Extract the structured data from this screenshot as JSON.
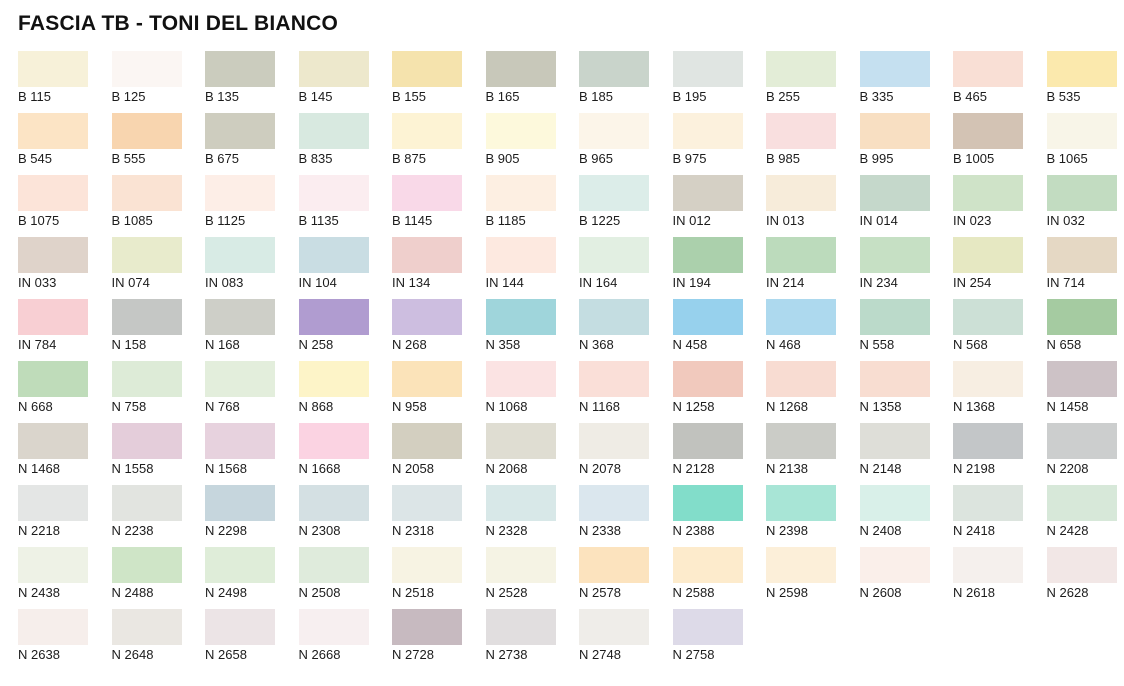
{
  "chart_data": {
    "type": "table",
    "title": "FASCIA TB - TONI DEL BIANCO",
    "layout": {
      "columns": 12,
      "rows": 10,
      "last_row_count": 8,
      "grid_on": false
    },
    "swatches": [
      {
        "code": "B 115",
        "color": "#F7F1D9"
      },
      {
        "code": "B 125",
        "color": "#FBF6F3"
      },
      {
        "code": "B 135",
        "color": "#CBCCBE"
      },
      {
        "code": "B 145",
        "color": "#EDE8CC"
      },
      {
        "code": "B 155",
        "color": "#F5E3AD"
      },
      {
        "code": "B 165",
        "color": "#C8C8BA"
      },
      {
        "code": "B 185",
        "color": "#C9D4CB"
      },
      {
        "code": "B 195",
        "color": "#E0E5E2"
      },
      {
        "code": "B 255",
        "color": "#E3EDD7"
      },
      {
        "code": "B 335",
        "color": "#C5E0F0"
      },
      {
        "code": "B 465",
        "color": "#F9DFD5"
      },
      {
        "code": "B 535",
        "color": "#FBE9AD"
      },
      {
        "code": "B 545",
        "color": "#FCE4C5"
      },
      {
        "code": "B 555",
        "color": "#F8D5AF"
      },
      {
        "code": "B 675",
        "color": "#CECDBF"
      },
      {
        "code": "B 835",
        "color": "#D8E9E0"
      },
      {
        "code": "B 875",
        "color": "#FDF3D4"
      },
      {
        "code": "B 905",
        "color": "#FDF9DC"
      },
      {
        "code": "B 965",
        "color": "#FCF5E9"
      },
      {
        "code": "B 975",
        "color": "#FCF1DD"
      },
      {
        "code": "B 985",
        "color": "#F9DFDF"
      },
      {
        "code": "B 995",
        "color": "#F8DFC2"
      },
      {
        "code": "B 1005",
        "color": "#D3C3B4"
      },
      {
        "code": "B 1065",
        "color": "#F8F5E8"
      },
      {
        "code": "B 1075",
        "color": "#FCE4D9"
      },
      {
        "code": "B 1085",
        "color": "#FAE3D3"
      },
      {
        "code": "B 1125",
        "color": "#FDEEE7"
      },
      {
        "code": "B 1135",
        "color": "#FBEDF0"
      },
      {
        "code": "B 1145",
        "color": "#F9D9E8"
      },
      {
        "code": "B 1185",
        "color": "#FDEFE2"
      },
      {
        "code": "B 1225",
        "color": "#DCEDE9"
      },
      {
        "code": "IN 012",
        "color": "#D5D0C5"
      },
      {
        "code": "IN 013",
        "color": "#F7ECDA"
      },
      {
        "code": "IN 014",
        "color": "#C5D8CB"
      },
      {
        "code": "IN 023",
        "color": "#CFE3C8"
      },
      {
        "code": "IN 032",
        "color": "#C2DCC1"
      },
      {
        "code": "IN 033",
        "color": "#DFD3CA"
      },
      {
        "code": "IN 074",
        "color": "#E8EBCC"
      },
      {
        "code": "IN 083",
        "color": "#D8EBE5"
      },
      {
        "code": "IN 104",
        "color": "#C9DDE3"
      },
      {
        "code": "IN 134",
        "color": "#EFCFCC"
      },
      {
        "code": "IN 144",
        "color": "#FDE9E0"
      },
      {
        "code": "IN 164",
        "color": "#E2EFE2"
      },
      {
        "code": "IN 194",
        "color": "#ABD0AC"
      },
      {
        "code": "IN 214",
        "color": "#BCDBBC"
      },
      {
        "code": "IN 234",
        "color": "#C6E0C4"
      },
      {
        "code": "IN 254",
        "color": "#E6E8C2"
      },
      {
        "code": "IN 714",
        "color": "#E5D8C4"
      },
      {
        "code": "IN 784",
        "color": "#F8CFD3"
      },
      {
        "code": "N 158",
        "color": "#C5C7C5"
      },
      {
        "code": "N 168",
        "color": "#CECFC8"
      },
      {
        "code": "N 258",
        "color": "#B09CD0"
      },
      {
        "code": "N 268",
        "color": "#CDBEE0"
      },
      {
        "code": "N 358",
        "color": "#9FD5DB"
      },
      {
        "code": "N 368",
        "color": "#C4DDE1"
      },
      {
        "code": "N 458",
        "color": "#97D1ED"
      },
      {
        "code": "N 468",
        "color": "#ADD9EE"
      },
      {
        "code": "N 558",
        "color": "#BBDACA"
      },
      {
        "code": "N 568",
        "color": "#CCE0D6"
      },
      {
        "code": "N 658",
        "color": "#A5CBA1"
      },
      {
        "code": "N 668",
        "color": "#BFDCBA"
      },
      {
        "code": "N 758",
        "color": "#DDEBD7"
      },
      {
        "code": "N 768",
        "color": "#E3EEDC"
      },
      {
        "code": "N 868",
        "color": "#FDF4C8"
      },
      {
        "code": "N 958",
        "color": "#FBE3B9"
      },
      {
        "code": "N 1068",
        "color": "#FBE3E3"
      },
      {
        "code": "N 1168",
        "color": "#FADFD8"
      },
      {
        "code": "N 1258",
        "color": "#F1C9BD"
      },
      {
        "code": "N 1268",
        "color": "#F8DCD2"
      },
      {
        "code": "N 1358",
        "color": "#F8DDD1"
      },
      {
        "code": "N 1368",
        "color": "#F7EEE2"
      },
      {
        "code": "N 1458",
        "color": "#CDC2C6"
      },
      {
        "code": "N 1468",
        "color": "#DAD5CC"
      },
      {
        "code": "N 1558",
        "color": "#E4CDDA"
      },
      {
        "code": "N 1568",
        "color": "#E7D2DE"
      },
      {
        "code": "N 1668",
        "color": "#FBD3E2"
      },
      {
        "code": "N 2058",
        "color": "#D3CFC0"
      },
      {
        "code": "N 2068",
        "color": "#DFDDD2"
      },
      {
        "code": "N 2078",
        "color": "#EFECE5"
      },
      {
        "code": "N 2128",
        "color": "#C1C2BE"
      },
      {
        "code": "N 2138",
        "color": "#CBCCC7"
      },
      {
        "code": "N 2148",
        "color": "#DEDED8"
      },
      {
        "code": "N 2198",
        "color": "#C3C6C8"
      },
      {
        "code": "N 2208",
        "color": "#CCCECE"
      },
      {
        "code": "N 2218",
        "color": "#E4E6E5"
      },
      {
        "code": "N 2238",
        "color": "#E2E4E0"
      },
      {
        "code": "N 2298",
        "color": "#C6D6DD"
      },
      {
        "code": "N 2308",
        "color": "#D4E0E3"
      },
      {
        "code": "N 2318",
        "color": "#DCE5E7"
      },
      {
        "code": "N 2328",
        "color": "#D8E8E8"
      },
      {
        "code": "N 2338",
        "color": "#DBE7EE"
      },
      {
        "code": "N 2388",
        "color": "#82DDCA"
      },
      {
        "code": "N 2398",
        "color": "#A8E5D6"
      },
      {
        "code": "N 2408",
        "color": "#D9F0E9"
      },
      {
        "code": "N 2418",
        "color": "#DCE4DE"
      },
      {
        "code": "N 2428",
        "color": "#D7E8D9"
      },
      {
        "code": "N 2438",
        "color": "#EEF2E6"
      },
      {
        "code": "N 2488",
        "color": "#CFE5C7"
      },
      {
        "code": "N 2498",
        "color": "#DFEDD9"
      },
      {
        "code": "N 2508",
        "color": "#DFEBDC"
      },
      {
        "code": "N 2518",
        "color": "#F7F3E3"
      },
      {
        "code": "N 2528",
        "color": "#F5F3E4"
      },
      {
        "code": "N 2578",
        "color": "#FCE3BE"
      },
      {
        "code": "N 2588",
        "color": "#FDEBCC"
      },
      {
        "code": "N 2598",
        "color": "#FCEFD9"
      },
      {
        "code": "N 2608",
        "color": "#FAEFEA"
      },
      {
        "code": "N 2618",
        "color": "#F5F0ED"
      },
      {
        "code": "N 2628",
        "color": "#F2E7E6"
      },
      {
        "code": "N 2638",
        "color": "#F6EEEB"
      },
      {
        "code": "N 2648",
        "color": "#EAE7E2"
      },
      {
        "code": "N 2658",
        "color": "#ECE4E6"
      },
      {
        "code": "N 2668",
        "color": "#F7EFF0"
      },
      {
        "code": "N 2728",
        "color": "#C7BAC0"
      },
      {
        "code": "N 2738",
        "color": "#E1DEDF"
      },
      {
        "code": "N 2748",
        "color": "#EFEDE9"
      },
      {
        "code": "N 2758",
        "color": "#DDDAE8"
      }
    ]
  }
}
